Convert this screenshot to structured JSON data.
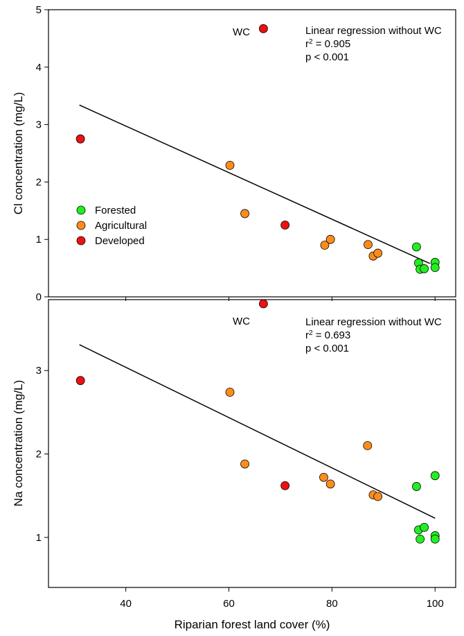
{
  "chart_data": [
    {
      "type": "scatter",
      "ylabel": "Cl concentration (mg/L)",
      "ylim": [
        0,
        5
      ],
      "yticks": [
        "0",
        "1",
        "2",
        "3",
        "4",
        "5"
      ],
      "xlim": [
        25,
        104
      ],
      "annotation": {
        "line1": "Linear regression without WC",
        "r2_prefix": "r",
        "r2_sup": "2",
        "r2_value": " = 0.905",
        "p": "p < 0.001"
      },
      "outlier_label": "WC",
      "regression": {
        "x": [
          31,
          99
        ],
        "y": [
          3.34,
          0.58
        ]
      },
      "points": [
        {
          "group": "Developed",
          "x": 66.7,
          "y": 4.67
        },
        {
          "group": "Developed",
          "x": 31.2,
          "y": 2.75
        },
        {
          "group": "Developed",
          "x": 70.9,
          "y": 1.25
        },
        {
          "group": "Agricultural",
          "x": 60.2,
          "y": 2.29
        },
        {
          "group": "Agricultural",
          "x": 63.1,
          "y": 1.45
        },
        {
          "group": "Agricultural",
          "x": 78.6,
          "y": 0.9
        },
        {
          "group": "Agricultural",
          "x": 79.7,
          "y": 1.0
        },
        {
          "group": "Agricultural",
          "x": 87.0,
          "y": 0.91
        },
        {
          "group": "Agricultural",
          "x": 88.0,
          "y": 0.71
        },
        {
          "group": "Agricultural",
          "x": 88.9,
          "y": 0.76
        },
        {
          "group": "Forested",
          "x": 96.4,
          "y": 0.87
        },
        {
          "group": "Forested",
          "x": 96.8,
          "y": 0.59
        },
        {
          "group": "Forested",
          "x": 97.1,
          "y": 0.48
        },
        {
          "group": "Forested",
          "x": 97.9,
          "y": 0.49
        },
        {
          "group": "Forested",
          "x": 100.0,
          "y": 0.6
        },
        {
          "group": "Forested",
          "x": 100.0,
          "y": 0.51
        }
      ]
    },
    {
      "type": "scatter",
      "ylabel": "Na concentration (mg/L)",
      "ylim": [
        0.4,
        3.85
      ],
      "yticks": [
        "1",
        "2",
        "3"
      ],
      "xlabel": "Riparian forest land cover (%)",
      "xlim": [
        25,
        104
      ],
      "xticks": [
        "40",
        "60",
        "80",
        "100"
      ],
      "annotation": {
        "line1": "Linear regression without WC",
        "r2_prefix": "r",
        "r2_sup": "2",
        "r2_value": " = 0.693",
        "p": "p < 0.001"
      },
      "outlier_label": "WC",
      "regression": {
        "x": [
          31,
          100
        ],
        "y": [
          3.31,
          1.23
        ]
      },
      "points": [
        {
          "group": "Developed",
          "x": 66.7,
          "y": 3.8
        },
        {
          "group": "Developed",
          "x": 31.2,
          "y": 2.88
        },
        {
          "group": "Developed",
          "x": 70.9,
          "y": 1.62
        },
        {
          "group": "Agricultural",
          "x": 60.2,
          "y": 2.74
        },
        {
          "group": "Agricultural",
          "x": 63.1,
          "y": 1.88
        },
        {
          "group": "Agricultural",
          "x": 78.4,
          "y": 1.72
        },
        {
          "group": "Agricultural",
          "x": 79.7,
          "y": 1.64
        },
        {
          "group": "Agricultural",
          "x": 86.9,
          "y": 2.1
        },
        {
          "group": "Agricultural",
          "x": 88.0,
          "y": 1.51
        },
        {
          "group": "Agricultural",
          "x": 88.9,
          "y": 1.49
        },
        {
          "group": "Forested",
          "x": 96.4,
          "y": 1.61
        },
        {
          "group": "Forested",
          "x": 96.8,
          "y": 1.09
        },
        {
          "group": "Forested",
          "x": 97.1,
          "y": 0.98
        },
        {
          "group": "Forested",
          "x": 97.9,
          "y": 1.12
        },
        {
          "group": "Forested",
          "x": 100.0,
          "y": 1.74
        },
        {
          "group": "Forested",
          "x": 100.0,
          "y": 1.02
        },
        {
          "group": "Forested",
          "x": 100.0,
          "y": 0.98
        }
      ]
    }
  ],
  "legend": {
    "placement": "left",
    "items": [
      {
        "label": "Forested",
        "color": "#22ee22"
      },
      {
        "label": "Agricultural",
        "color": "#ff8c1a"
      },
      {
        "label": "Developed",
        "color": "#ee1111"
      }
    ]
  }
}
